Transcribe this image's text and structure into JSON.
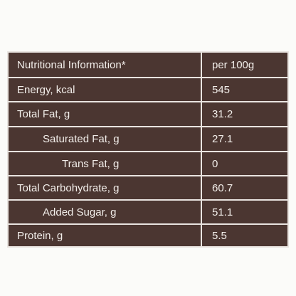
{
  "table": {
    "header": [
      "Nutritional Information*",
      "per 100g"
    ],
    "rows": [
      [
        "Energy, kcal",
        545
      ],
      [
        "Total Fat, g",
        31.2
      ],
      [
        "Saturated Fat, g",
        27.1
      ],
      [
        "Trans Fat, g",
        0
      ],
      [
        "Total Carbohydrate, g",
        60.7
      ],
      [
        "Added Sugar, g",
        51.1
      ],
      [
        "Protein, g",
        5.5
      ]
    ]
  }
}
